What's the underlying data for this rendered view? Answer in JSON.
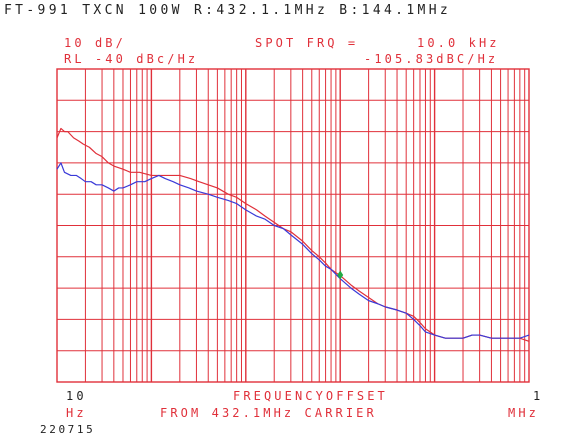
{
  "header": {
    "title": "FT-991 TXCN 100W R:432.1.1MHz B:144.1MHz"
  },
  "chart_data": {
    "type": "line",
    "scale_text": "10 dB/",
    "ref_level_text": "RL -40 dBc/Hz",
    "spot_label": "SPOT FRQ =",
    "spot_freq": "10.0 kHz",
    "spot_value": "-105.83dBC/Hz",
    "x_start_label": "10",
    "x_start_unit": "Hz",
    "x_end_label": "1",
    "x_end_unit": "MHz",
    "xlabel_line1": "FREQUENCYOFFSET",
    "xlabel_line2": "FROM 432.1MHz CARRIER",
    "date_text": "220715",
    "x_scale": "log",
    "x_range_hz": [
      10,
      1000000
    ],
    "y_range_dbc_hz": [
      -140,
      -40
    ],
    "y_divisions": 10,
    "grid": true,
    "colors": {
      "grid": "#e0303a",
      "text_black": "#222222",
      "text_red": "#e0303a",
      "series_red": "#e0303a",
      "series_blue": "#3a3ad8",
      "marker": "#22aa44"
    },
    "marker": {
      "x": 10000,
      "y": -105.83
    },
    "series": [
      {
        "color": "#e0303a",
        "points": [
          [
            10,
            -62
          ],
          [
            11,
            -59
          ],
          [
            12,
            -60
          ],
          [
            13,
            -60
          ],
          [
            15,
            -62
          ],
          [
            17,
            -63
          ],
          [
            19,
            -64
          ],
          [
            22,
            -65
          ],
          [
            26,
            -67
          ],
          [
            30,
            -68
          ],
          [
            35,
            -70
          ],
          [
            40,
            -71
          ],
          [
            50,
            -72
          ],
          [
            60,
            -73
          ],
          [
            75,
            -73
          ],
          [
            100,
            -74
          ],
          [
            130,
            -74
          ],
          [
            160,
            -74
          ],
          [
            200,
            -74
          ],
          [
            260,
            -75
          ],
          [
            320,
            -76
          ],
          [
            400,
            -77
          ],
          [
            500,
            -78
          ],
          [
            650,
            -80
          ],
          [
            800,
            -81
          ],
          [
            1000,
            -83
          ],
          [
            1300,
            -85
          ],
          [
            1600,
            -87
          ],
          [
            2000,
            -89
          ],
          [
            2500,
            -91
          ],
          [
            3000,
            -92
          ],
          [
            4000,
            -95
          ],
          [
            5000,
            -98
          ],
          [
            6000,
            -100
          ],
          [
            7000,
            -102
          ],
          [
            8000,
            -104
          ],
          [
            10000,
            -106
          ],
          [
            13000,
            -109
          ],
          [
            16000,
            -111
          ],
          [
            20000,
            -113
          ],
          [
            25000,
            -115
          ],
          [
            30000,
            -116
          ],
          [
            40000,
            -117
          ],
          [
            50000,
            -118
          ],
          [
            60000,
            -119
          ],
          [
            70000,
            -121
          ],
          [
            80000,
            -123
          ],
          [
            100000,
            -125
          ],
          [
            130000,
            -126
          ],
          [
            160000,
            -126
          ],
          [
            200000,
            -126
          ],
          [
            250000,
            -125
          ],
          [
            300000,
            -125
          ],
          [
            400000,
            -126
          ],
          [
            500000,
            -126
          ],
          [
            650000,
            -126
          ],
          [
            800000,
            -126
          ],
          [
            1000000,
            -127
          ]
        ]
      },
      {
        "color": "#3a3ad8",
        "points": [
          [
            10,
            -72
          ],
          [
            11,
            -70
          ],
          [
            12,
            -73
          ],
          [
            14,
            -74
          ],
          [
            16,
            -74
          ],
          [
            18,
            -75
          ],
          [
            20,
            -76
          ],
          [
            23,
            -76
          ],
          [
            26,
            -77
          ],
          [
            30,
            -77
          ],
          [
            35,
            -78
          ],
          [
            40,
            -79
          ],
          [
            45,
            -78
          ],
          [
            50,
            -78
          ],
          [
            60,
            -77
          ],
          [
            70,
            -76
          ],
          [
            85,
            -76
          ],
          [
            100,
            -75
          ],
          [
            120,
            -74
          ],
          [
            140,
            -75
          ],
          [
            170,
            -76
          ],
          [
            200,
            -77
          ],
          [
            250,
            -78
          ],
          [
            300,
            -79
          ],
          [
            400,
            -80
          ],
          [
            500,
            -81
          ],
          [
            650,
            -82
          ],
          [
            800,
            -83
          ],
          [
            1000,
            -85
          ],
          [
            1300,
            -87
          ],
          [
            1600,
            -88
          ],
          [
            2000,
            -90
          ],
          [
            2500,
            -91
          ],
          [
            3000,
            -93
          ],
          [
            4000,
            -96
          ],
          [
            5000,
            -99
          ],
          [
            6000,
            -101
          ],
          [
            7000,
            -103
          ],
          [
            8000,
            -104
          ],
          [
            10000,
            -107
          ],
          [
            13000,
            -110
          ],
          [
            16000,
            -112
          ],
          [
            20000,
            -114
          ],
          [
            25000,
            -115
          ],
          [
            30000,
            -116
          ],
          [
            40000,
            -117
          ],
          [
            50000,
            -118
          ],
          [
            60000,
            -120
          ],
          [
            70000,
            -122
          ],
          [
            80000,
            -124
          ],
          [
            100000,
            -125
          ],
          [
            130000,
            -126
          ],
          [
            160000,
            -126
          ],
          [
            200000,
            -126
          ],
          [
            250000,
            -125
          ],
          [
            300000,
            -125
          ],
          [
            400000,
            -126
          ],
          [
            500000,
            -126
          ],
          [
            650000,
            -126
          ],
          [
            800000,
            -126
          ],
          [
            1000000,
            -125
          ]
        ]
      }
    ]
  }
}
